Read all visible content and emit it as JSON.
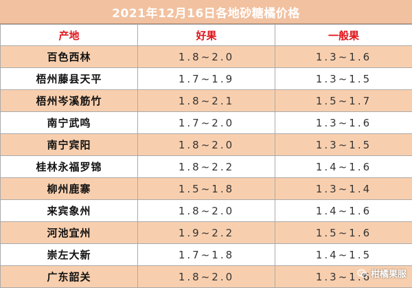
{
  "title": "2021年12月16日各地砂糖橘价格",
  "table": {
    "headers": [
      "产地",
      "好果",
      "一般果"
    ],
    "rows": [
      {
        "origin": "百色西林",
        "good": "1.8~2.0",
        "normal": "1.3~1.6"
      },
      {
        "origin": "梧州藤县天平",
        "good": "1.7~1.9",
        "normal": "1.3~1.5"
      },
      {
        "origin": "梧州岑溪筋竹",
        "good": "1.8~2.1",
        "normal": "1.5~1.7"
      },
      {
        "origin": "南宁武鸣",
        "good": "1.7~2.0",
        "normal": "1.3~1.6"
      },
      {
        "origin": "南宁宾阳",
        "good": "1.8~2.0",
        "normal": "1.3~1.5"
      },
      {
        "origin": "桂林永福罗锦",
        "good": "1.8~2.2",
        "normal": "1.4~1.6"
      },
      {
        "origin": "柳州鹿寨",
        "good": "1.5~1.8",
        "normal": "1.3~1.4"
      },
      {
        "origin": "来宾象州",
        "good": "1.8~2.0",
        "normal": "1.4~1.6"
      },
      {
        "origin": "河池宜州",
        "good": "1.9~2.2",
        "normal": "1.5~1.6"
      },
      {
        "origin": "崇左大新",
        "good": "1.7~1.8",
        "normal": "1.4~1.5"
      },
      {
        "origin": "广东韶关",
        "good": "1.8~2.0",
        "normal": "1.3~1.6"
      }
    ]
  },
  "watermark": {
    "text": "柑橘果服",
    "icon": "wechat-icon"
  },
  "colors": {
    "title_bg": "#f2c1a0",
    "row_highlight": "#f8cfae",
    "header_text": "#e0131a"
  }
}
